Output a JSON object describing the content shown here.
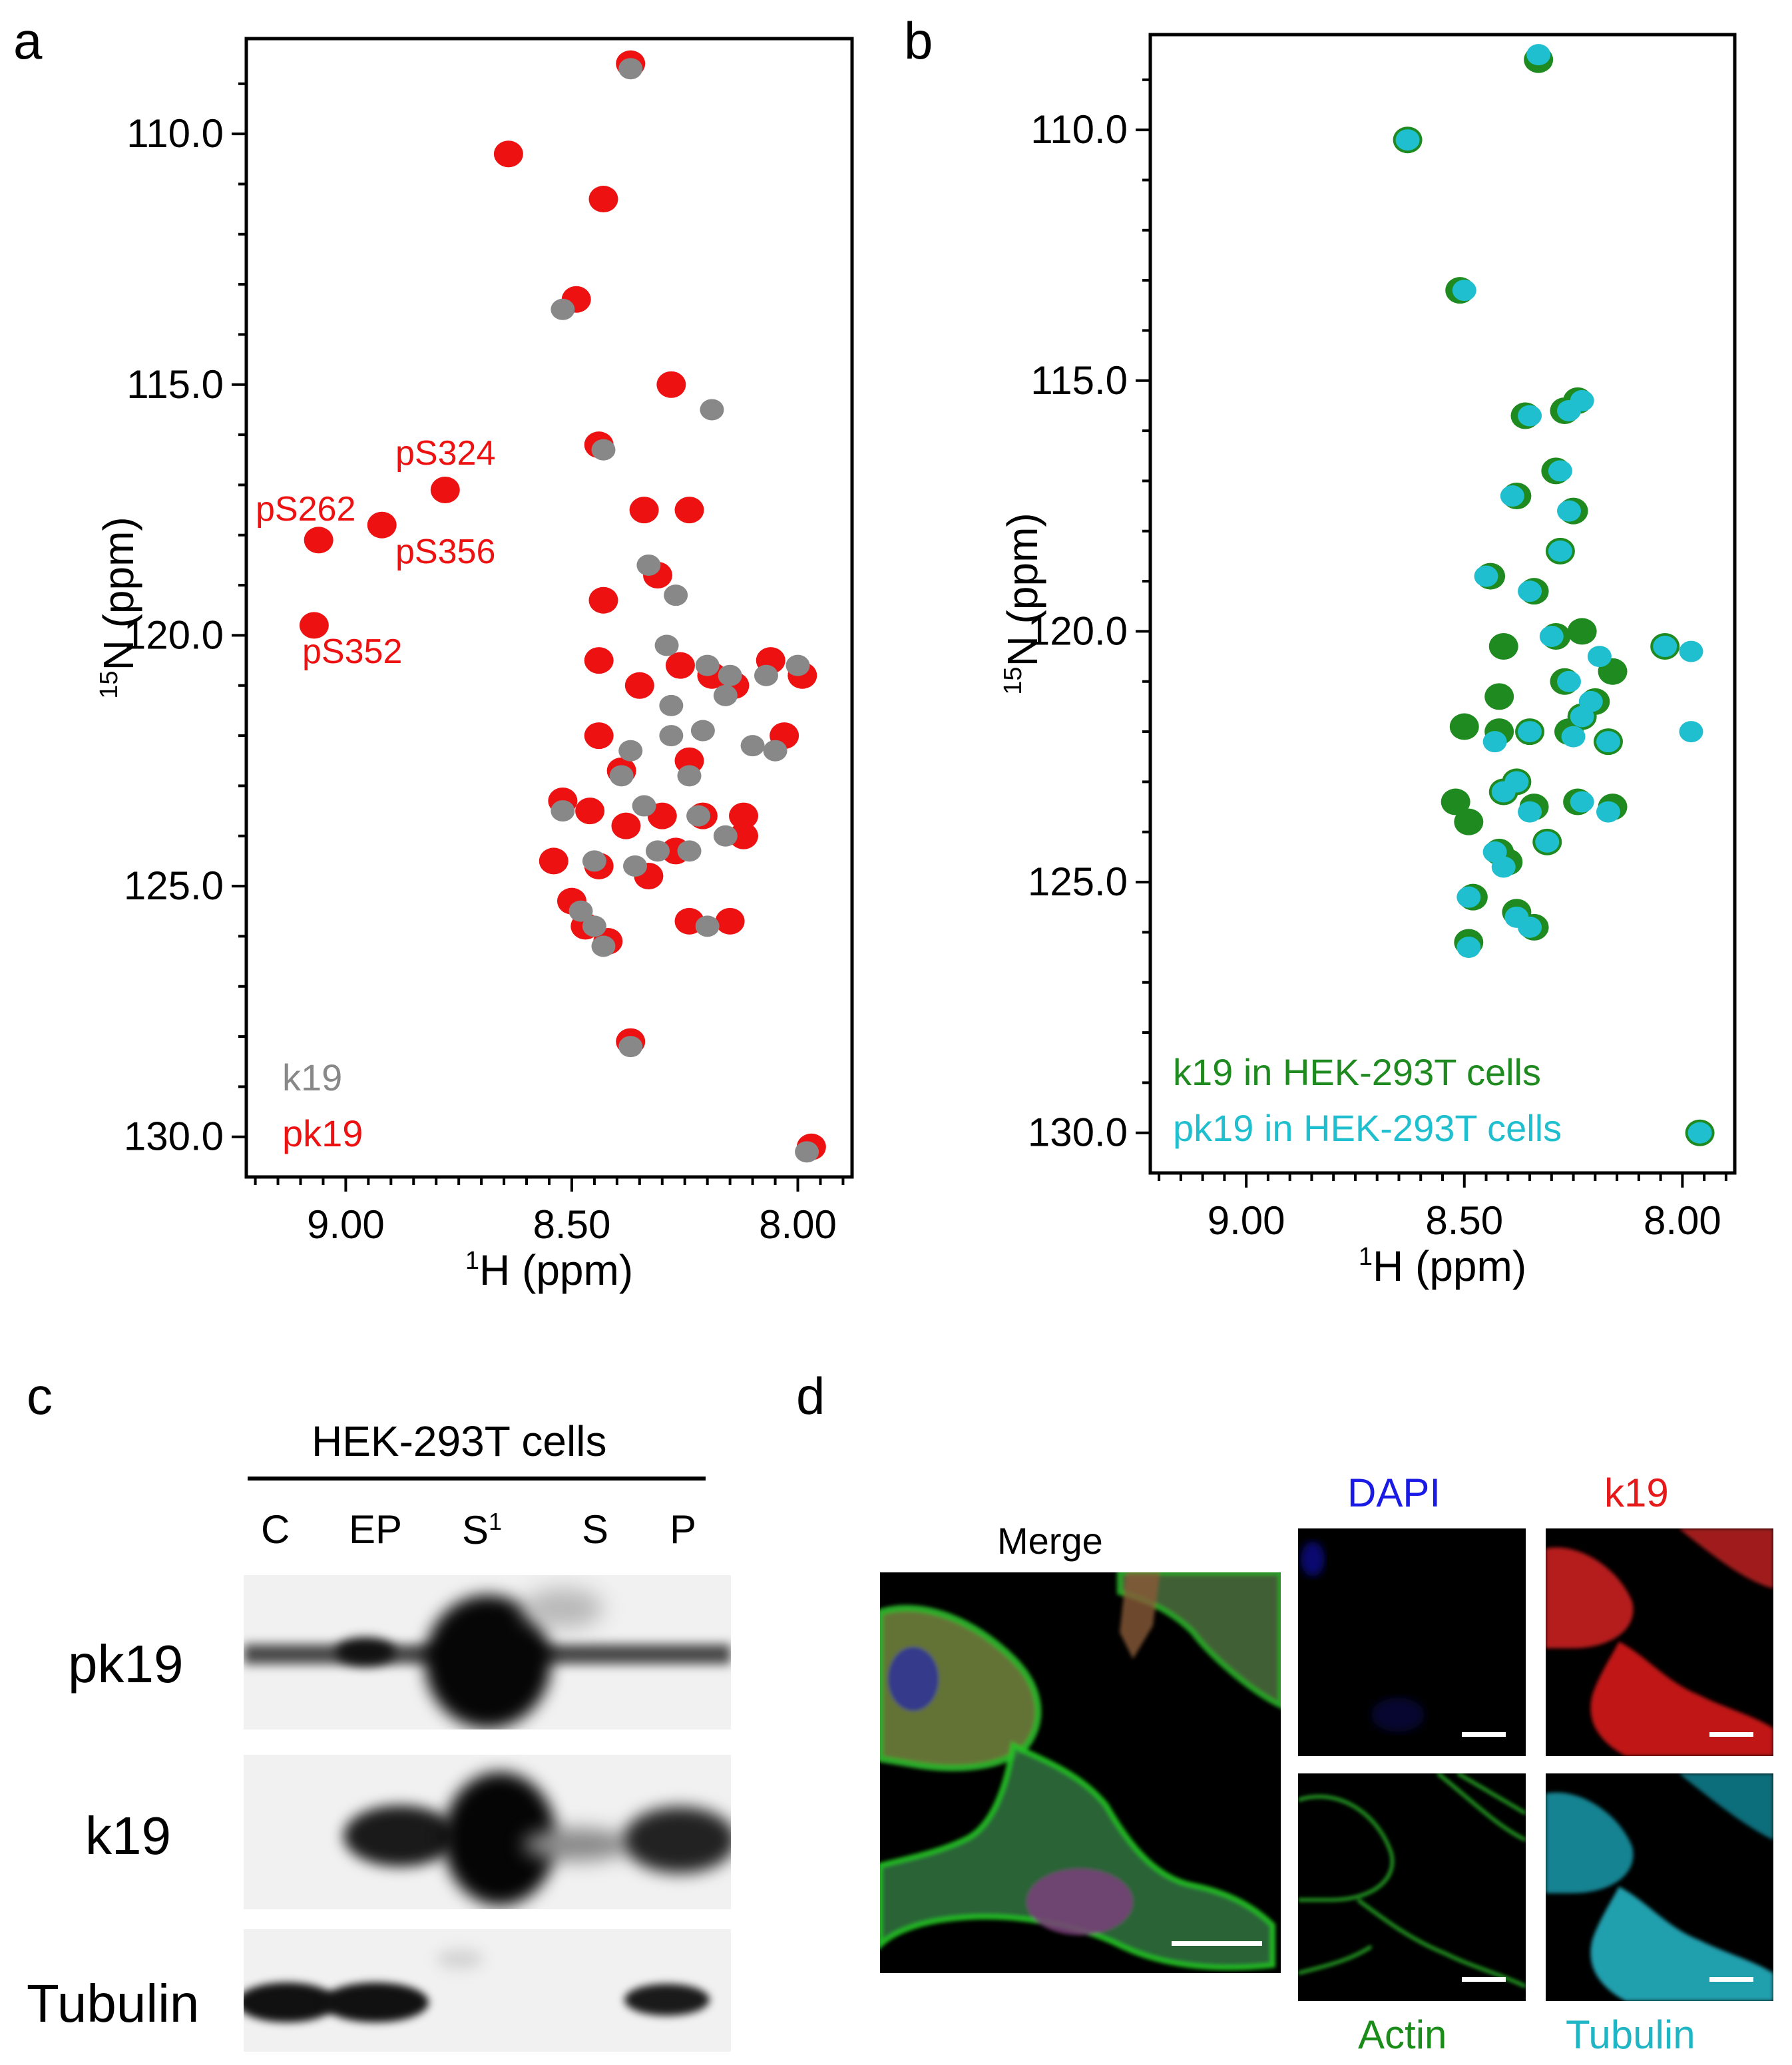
{
  "panels": {
    "a": {
      "letter": "a",
      "ylabel": "15N (ppm)",
      "xlabel": "1H (ppm)",
      "yticks": [
        "110.0",
        "115.0",
        "120.0",
        "125.0",
        "130.0"
      ],
      "xticks": [
        "9.00",
        "8.50",
        "8.00"
      ],
      "peak_labels": [
        "pS324",
        "pS262",
        "pS356",
        "pS352"
      ],
      "legend": [
        {
          "label": "k19",
          "color": "#888888"
        },
        {
          "label": "pk19",
          "color": "#ee1111"
        }
      ]
    },
    "b": {
      "letter": "b",
      "ylabel": "15N (ppm)",
      "xlabel": "1H (ppm)",
      "yticks": [
        "110.0",
        "115.0",
        "120.0",
        "125.0",
        "130.0"
      ],
      "xticks": [
        "9.00",
        "8.50",
        "8.00"
      ],
      "legend": [
        {
          "label": "k19 in HEK-293T cells",
          "color": "#1f8a1f"
        },
        {
          "label": "pk19 in HEK-293T cells",
          "color": "#1fbfcf"
        }
      ]
    },
    "c": {
      "letter": "c",
      "header": "HEK-293T cells",
      "lanes": [
        "C",
        "EP",
        "S",
        "S",
        "P"
      ],
      "lane_superscript": "1",
      "rows": [
        "pk19",
        "k19",
        "Tubulin"
      ]
    },
    "d": {
      "letter": "d",
      "merge_label": "Merge",
      "channels": [
        {
          "label": "DAPI",
          "color": "#1a1ae6"
        },
        {
          "label": "k19",
          "color": "#e61a1a"
        },
        {
          "label": "Actin",
          "color": "#1a8c1a"
        },
        {
          "label": "Tubulin",
          "color": "#1fb5c5"
        }
      ]
    }
  },
  "chart_data": [
    {
      "type": "scatter",
      "title": "",
      "xlabel": "1H (ppm)",
      "ylabel": "15N (ppm)",
      "xlim": [
        9.22,
        7.88
      ],
      "ylim": [
        130.8,
        108.1
      ],
      "series": [
        {
          "name": "pk19",
          "color": "#ee1111",
          "points": [
            [
              8.37,
              108.6
            ],
            [
              8.64,
              110.4
            ],
            [
              8.43,
              111.3
            ],
            [
              8.49,
              113.3
            ],
            [
              8.28,
              115.0
            ],
            [
              8.44,
              116.2
            ],
            [
              8.78,
              117.1
            ],
            [
              9.06,
              118.1
            ],
            [
              8.92,
              117.8
            ],
            [
              9.07,
              119.8
            ],
            [
              8.34,
              117.5
            ],
            [
              8.24,
              117.5
            ],
            [
              8.31,
              118.8
            ],
            [
              8.43,
              119.3
            ],
            [
              8.44,
              120.5
            ],
            [
              8.35,
              121.0
            ],
            [
              8.26,
              120.6
            ],
            [
              8.19,
              120.8
            ],
            [
              8.06,
              120.5
            ],
            [
              7.99,
              120.8
            ],
            [
              8.14,
              121.0
            ],
            [
              8.44,
              122.0
            ],
            [
              8.39,
              122.7
            ],
            [
              8.24,
              122.5
            ],
            [
              8.03,
              122.0
            ],
            [
              8.52,
              123.3
            ],
            [
              8.46,
              123.5
            ],
            [
              8.38,
              123.8
            ],
            [
              8.3,
              123.6
            ],
            [
              8.21,
              123.6
            ],
            [
              8.12,
              123.6
            ],
            [
              8.54,
              124.5
            ],
            [
              8.44,
              124.6
            ],
            [
              8.33,
              124.8
            ],
            [
              8.27,
              124.3
            ],
            [
              8.12,
              124.0
            ],
            [
              8.5,
              125.3
            ],
            [
              8.47,
              125.8
            ],
            [
              8.42,
              126.1
            ],
            [
              8.24,
              125.7
            ],
            [
              8.15,
              125.7
            ],
            [
              8.37,
              128.1
            ],
            [
              7.97,
              130.2
            ]
          ]
        },
        {
          "name": "k19",
          "color": "#888888",
          "points": [
            [
              8.37,
              108.7
            ],
            [
              8.52,
              113.5
            ],
            [
              8.43,
              116.3
            ],
            [
              8.33,
              118.6
            ],
            [
              8.27,
              119.2
            ],
            [
              8.29,
              120.2
            ],
            [
              8.2,
              120.6
            ],
            [
              8.15,
              120.8
            ],
            [
              8.07,
              120.8
            ],
            [
              8.0,
              120.6
            ],
            [
              8.28,
              121.4
            ],
            [
              8.16,
              121.2
            ],
            [
              8.37,
              122.3
            ],
            [
              8.28,
              122.0
            ],
            [
              8.21,
              121.9
            ],
            [
              8.1,
              122.2
            ],
            [
              8.39,
              122.8
            ],
            [
              8.24,
              122.8
            ],
            [
              8.05,
              122.3
            ],
            [
              8.34,
              123.4
            ],
            [
              8.22,
              123.6
            ],
            [
              8.52,
              123.5
            ],
            [
              8.31,
              124.3
            ],
            [
              8.24,
              124.3
            ],
            [
              8.16,
              124.0
            ],
            [
              8.45,
              124.5
            ],
            [
              8.36,
              124.6
            ],
            [
              8.48,
              125.5
            ],
            [
              8.45,
              125.8
            ],
            [
              8.43,
              126.2
            ],
            [
              8.2,
              125.8
            ],
            [
              8.37,
              128.2
            ],
            [
              7.98,
              130.3
            ],
            [
              8.19,
              115.5
            ]
          ]
        }
      ]
    },
    {
      "type": "scatter",
      "title": "",
      "xlabel": "1H (ppm)",
      "ylabel": "15N (ppm)",
      "xlim": [
        9.22,
        7.88
      ],
      "ylim": [
        130.8,
        108.1
      ],
      "series": [
        {
          "name": "k19 in HEK-293T cells",
          "color": "#1f8a1f",
          "points": [
            [
              8.33,
              108.6
            ],
            [
              8.63,
              110.2
            ],
            [
              8.51,
              113.2
            ],
            [
              8.36,
              115.7
            ],
            [
              8.27,
              115.6
            ],
            [
              8.24,
              115.4
            ],
            [
              8.29,
              116.8
            ],
            [
              8.38,
              117.3
            ],
            [
              8.25,
              117.6
            ],
            [
              8.28,
              118.4
            ],
            [
              8.44,
              118.9
            ],
            [
              8.34,
              119.2
            ],
            [
              8.29,
              120.1
            ],
            [
              8.41,
              120.3
            ],
            [
              8.23,
              120.0
            ],
            [
              8.16,
              120.8
            ],
            [
              8.04,
              120.3
            ],
            [
              8.27,
              121.0
            ],
            [
              8.2,
              121.4
            ],
            [
              8.23,
              121.7
            ],
            [
              8.26,
              122.0
            ],
            [
              8.17,
              122.2
            ],
            [
              8.42,
              121.3
            ],
            [
              8.5,
              121.9
            ],
            [
              8.42,
              122.0
            ],
            [
              8.35,
              122.0
            ],
            [
              8.38,
              123.0
            ],
            [
              8.34,
              123.5
            ],
            [
              8.41,
              123.2
            ],
            [
              8.24,
              123.4
            ],
            [
              8.16,
              123.5
            ],
            [
              8.49,
              123.8
            ],
            [
              8.52,
              123.4
            ],
            [
              8.42,
              124.4
            ],
            [
              8.4,
              124.6
            ],
            [
              8.31,
              124.2
            ],
            [
              8.48,
              125.3
            ],
            [
              8.38,
              125.6
            ],
            [
              8.34,
              125.9
            ],
            [
              8.49,
              126.2
            ],
            [
              7.96,
              130.0
            ]
          ]
        },
        {
          "name": "pk19 in HEK-293T cells",
          "color": "#1fbfcf",
          "points": [
            [
              8.33,
              108.5
            ],
            [
              8.63,
              110.2
            ],
            [
              8.5,
              113.2
            ],
            [
              8.35,
              115.7
            ],
            [
              8.26,
              115.6
            ],
            [
              8.23,
              115.4
            ],
            [
              8.28,
              116.8
            ],
            [
              8.39,
              117.3
            ],
            [
              8.26,
              117.6
            ],
            [
              8.28,
              118.4
            ],
            [
              8.45,
              118.9
            ],
            [
              8.35,
              119.2
            ],
            [
              8.3,
              120.1
            ],
            [
              8.19,
              120.5
            ],
            [
              8.04,
              120.3
            ],
            [
              7.98,
              120.4
            ],
            [
              8.26,
              121.0
            ],
            [
              8.21,
              121.4
            ],
            [
              8.23,
              121.7
            ],
            [
              8.25,
              122.1
            ],
            [
              8.17,
              122.2
            ],
            [
              8.35,
              122.0
            ],
            [
              8.43,
              122.2
            ],
            [
              8.38,
              123.0
            ],
            [
              8.35,
              123.6
            ],
            [
              8.41,
              123.2
            ],
            [
              8.23,
              123.4
            ],
            [
              8.17,
              123.6
            ],
            [
              8.43,
              124.4
            ],
            [
              8.41,
              124.7
            ],
            [
              8.31,
              124.2
            ],
            [
              8.49,
              125.3
            ],
            [
              8.38,
              125.7
            ],
            [
              8.35,
              125.9
            ],
            [
              8.49,
              126.3
            ],
            [
              7.96,
              130.0
            ],
            [
              7.98,
              122.0
            ]
          ]
        }
      ]
    }
  ]
}
